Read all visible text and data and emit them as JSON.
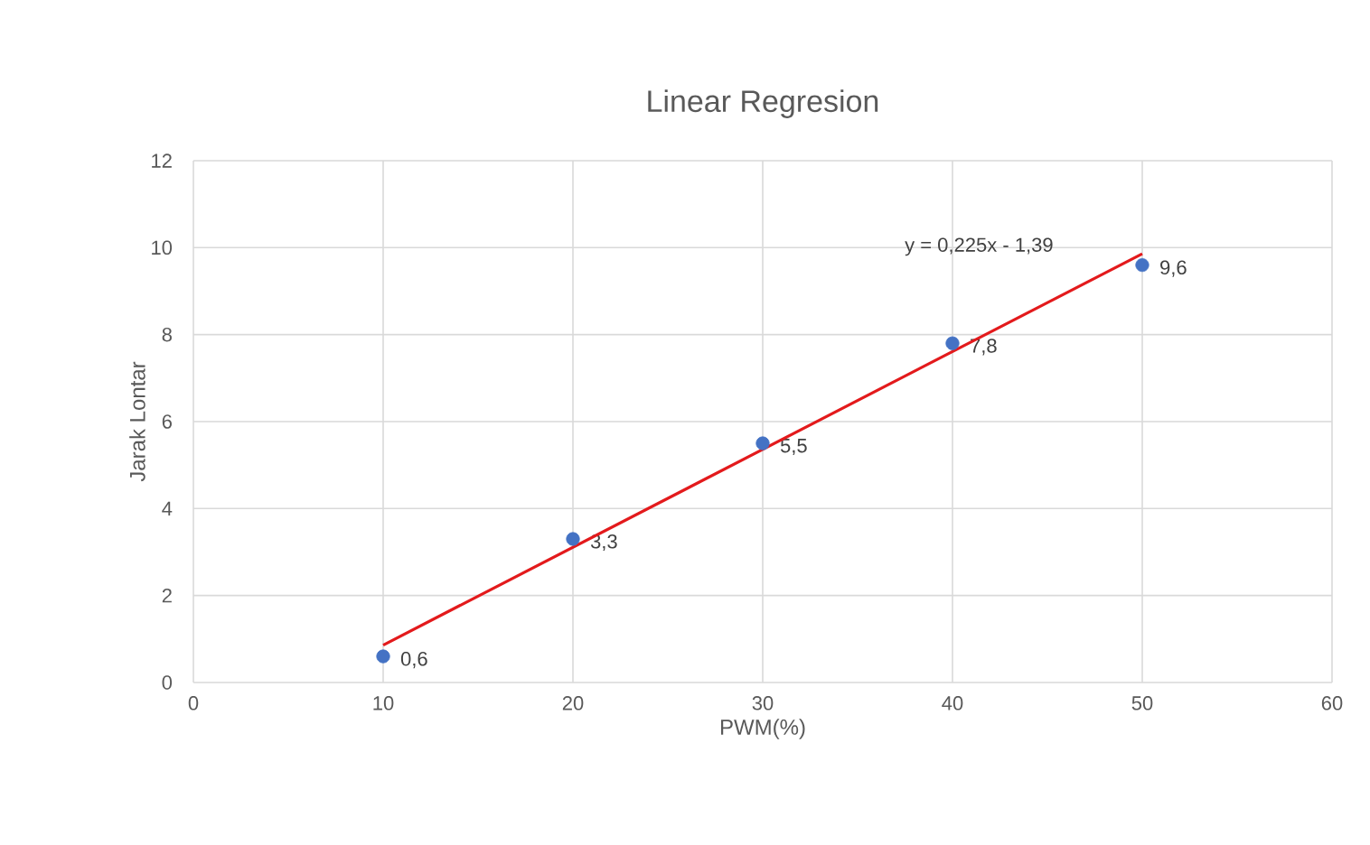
{
  "chart_data": {
    "type": "scatter",
    "title": "Linear Regresion",
    "xlabel": "PWM(%)",
    "ylabel": "Jarak Lontar",
    "series": [
      {
        "color": "#4472c4",
        "marker": "circle",
        "x": [
          10,
          20,
          30,
          40,
          50
        ],
        "values": [
          0.6,
          3.3,
          5.5,
          7.8,
          9.6
        ],
        "value_labels": [
          "0,6",
          "3,3",
          "5,5",
          "7,8",
          "9,6"
        ]
      },
      {
        "type": "line",
        "color": "#e31a1c",
        "marker": "none",
        "line_style": "solid",
        "x": [
          10,
          50
        ],
        "values": [
          0.86,
          9.86
        ]
      }
    ],
    "annotations": [
      "y = 0,225x - 1,39"
    ],
    "xlim": [
      0,
      60
    ],
    "xticks": [
      0,
      10,
      20,
      30,
      40,
      50,
      60
    ],
    "ylim": [
      0,
      12
    ],
    "yticks": [
      0,
      2,
      4,
      6,
      8,
      10,
      12
    ],
    "grid": true
  }
}
